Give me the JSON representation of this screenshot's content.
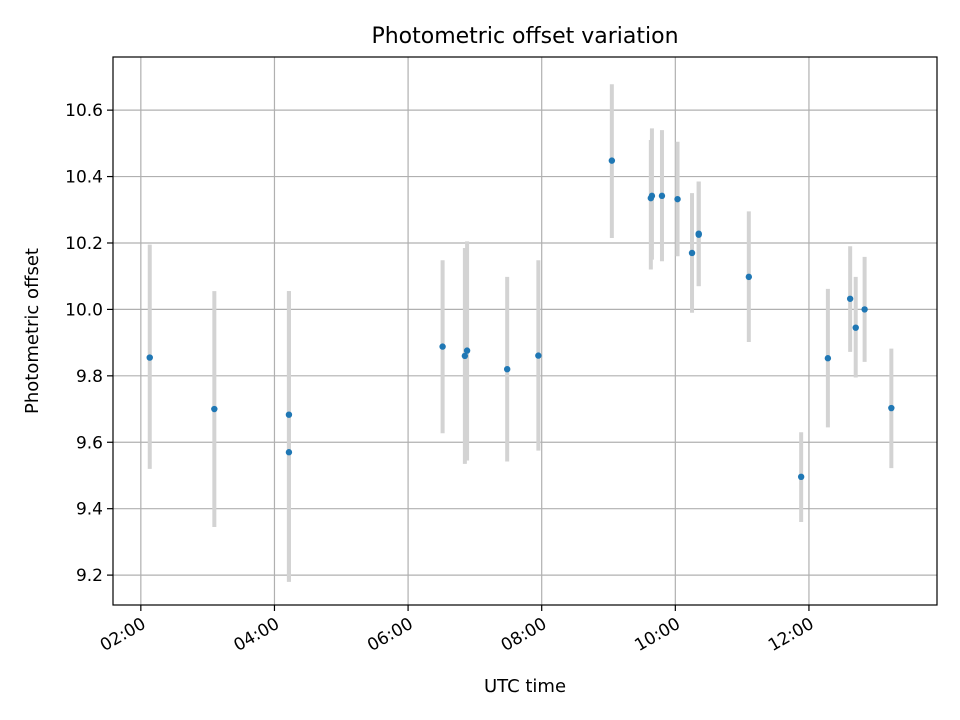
{
  "chart_data": {
    "type": "scatter",
    "title": "Photometric offset variation",
    "xlabel": "UTC time",
    "ylabel": "Photometric offset",
    "x_unit": "time of day (UTC, HH:MM)",
    "xlim": [
      "01:35",
      "13:55"
    ],
    "ylim": [
      9.11,
      10.76
    ],
    "x_ticks": [
      "02:00",
      "04:00",
      "06:00",
      "08:00",
      "10:00",
      "12:00"
    ],
    "y_ticks": [
      9.2,
      9.4,
      9.6,
      9.8,
      10.0,
      10.2,
      10.4,
      10.6
    ],
    "y_tick_labels": [
      "9.2",
      "9.4",
      "9.6",
      "9.8",
      "10.0",
      "10.2",
      "10.4",
      "10.6"
    ],
    "grid": true,
    "x_tick_rotation": "30 degrees",
    "colors": {
      "marker": "#1f77b4",
      "errorbar": "#d3d3d3",
      "grid": "#b0b0b0"
    },
    "series": [
      {
        "points": [
          {
            "x": "02:08",
            "y": 9.855,
            "ymin": 9.52,
            "ymax": 10.195
          },
          {
            "x": "03:06",
            "y": 9.7,
            "ymin": 9.345,
            "ymax": 10.055
          },
          {
            "x": "04:13",
            "y": 9.683,
            "ymin": 9.18,
            "ymax": 10.055
          },
          {
            "x": "04:13",
            "y": 9.57,
            "ymin": 9.18,
            "ymax": 10.055
          },
          {
            "x": "06:31",
            "y": 9.888,
            "ymin": 9.627,
            "ymax": 10.148
          },
          {
            "x": "06:51",
            "y": 9.86,
            "ymin": 9.535,
            "ymax": 10.185
          },
          {
            "x": "06:53",
            "y": 9.876,
            "ymin": 9.545,
            "ymax": 10.205
          },
          {
            "x": "07:29",
            "y": 9.82,
            "ymin": 9.542,
            "ymax": 10.098
          },
          {
            "x": "07:57",
            "y": 9.861,
            "ymin": 9.575,
            "ymax": 10.148
          },
          {
            "x": "09:03",
            "y": 10.448,
            "ymin": 10.215,
            "ymax": 10.678
          },
          {
            "x": "09:38",
            "y": 10.335,
            "ymin": 10.12,
            "ymax": 10.51
          },
          {
            "x": "09:39",
            "y": 10.342,
            "ymin": 10.15,
            "ymax": 10.545
          },
          {
            "x": "09:48",
            "y": 10.342,
            "ymin": 10.145,
            "ymax": 10.54
          },
          {
            "x": "10:02",
            "y": 10.332,
            "ymin": 10.16,
            "ymax": 10.505
          },
          {
            "x": "10:15",
            "y": 10.17,
            "ymin": 9.99,
            "ymax": 10.35
          },
          {
            "x": "10:21",
            "y": 10.228,
            "ymin": 10.07,
            "ymax": 10.385
          },
          {
            "x": "10:21",
            "y": 10.225,
            "ymin": 10.07,
            "ymax": 10.385
          },
          {
            "x": "11:06",
            "y": 10.098,
            "ymin": 9.902,
            "ymax": 10.295
          },
          {
            "x": "11:53",
            "y": 9.496,
            "ymin": 9.36,
            "ymax": 9.63
          },
          {
            "x": "12:17",
            "y": 9.853,
            "ymin": 9.645,
            "ymax": 10.062
          },
          {
            "x": "12:37",
            "y": 10.032,
            "ymin": 9.872,
            "ymax": 10.19
          },
          {
            "x": "12:42",
            "y": 9.945,
            "ymin": 9.795,
            "ymax": 10.098
          },
          {
            "x": "12:50",
            "y": 10.0,
            "ymin": 9.842,
            "ymax": 10.158
          },
          {
            "x": "13:14",
            "y": 9.703,
            "ymin": 9.522,
            "ymax": 9.882
          }
        ]
      }
    ]
  }
}
